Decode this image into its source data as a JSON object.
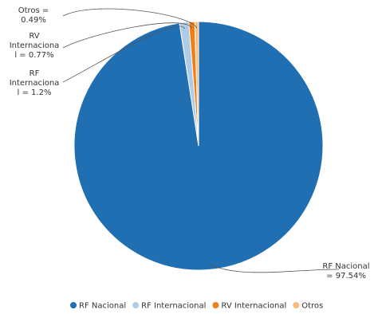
{
  "chart_data": {
    "type": "pie",
    "title": "",
    "legend_position": "bottom",
    "slices": [
      {
        "name": "RF Nacional",
        "value": 97.54,
        "color": "#1f6fb2",
        "label_lines": [
          "RF Nacional",
          "= 97.54%"
        ]
      },
      {
        "name": "RF Internacional",
        "value": 1.2,
        "color": "#aecbe8",
        "label_lines": [
          "RF",
          "Internaciona",
          "l = 1.2%"
        ]
      },
      {
        "name": "RV Internacional",
        "value": 0.77,
        "color": "#f07f19",
        "label_lines": [
          "RV",
          "Internaciona",
          "l = 0.77%"
        ]
      },
      {
        "name": "Otros",
        "value": 0.49,
        "color": "#fbb97a",
        "label_lines": [
          "Otros =",
          "0.49%"
        ]
      }
    ]
  }
}
